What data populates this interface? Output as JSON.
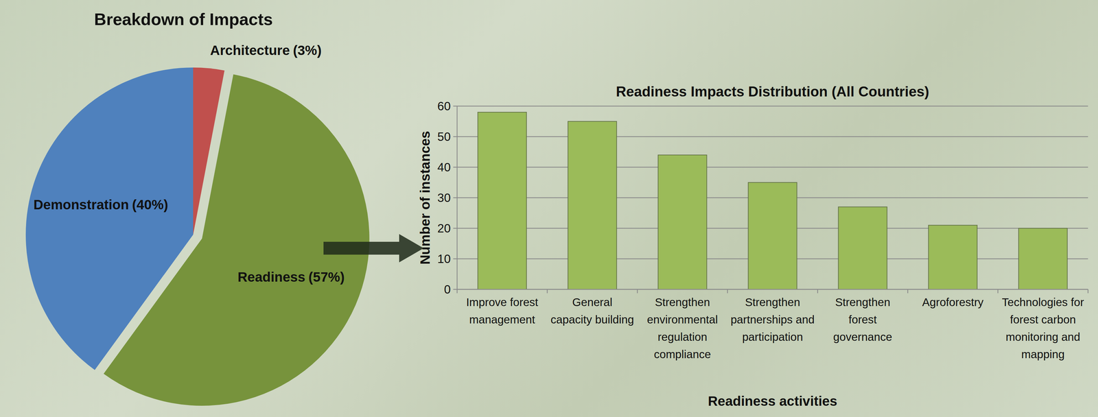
{
  "chart_data": [
    {
      "type": "pie",
      "title": "Breakdown of Impacts",
      "categories": [
        "Architecture",
        "Readiness",
        "Demonstration"
      ],
      "values": [
        3,
        57,
        40
      ],
      "value_labels": [
        "(3%)",
        "(57%)",
        "(40%)"
      ],
      "colors": [
        "#c0504d",
        "#77933c",
        "#4f81bd"
      ]
    },
    {
      "type": "bar",
      "title": "Readiness Impacts Distribution (All Countries)",
      "x_label": "Readiness activities",
      "y_label": "Number of instances",
      "categories": [
        "Improve forest management",
        "General capacity building",
        "Strengthen environmental regulation compliance",
        "Strengthen partnerships and participation",
        "Strengthen forest governance",
        "Agroforestry",
        "Technologies for forest carbon monitoring and mapping"
      ],
      "values": [
        58,
        55,
        44,
        35,
        27,
        21,
        20
      ],
      "color": "#9bbb59",
      "ylim": [
        0,
        60
      ],
      "yticks": [
        0,
        10,
        20,
        30,
        40,
        50,
        60
      ],
      "grid": true
    }
  ]
}
